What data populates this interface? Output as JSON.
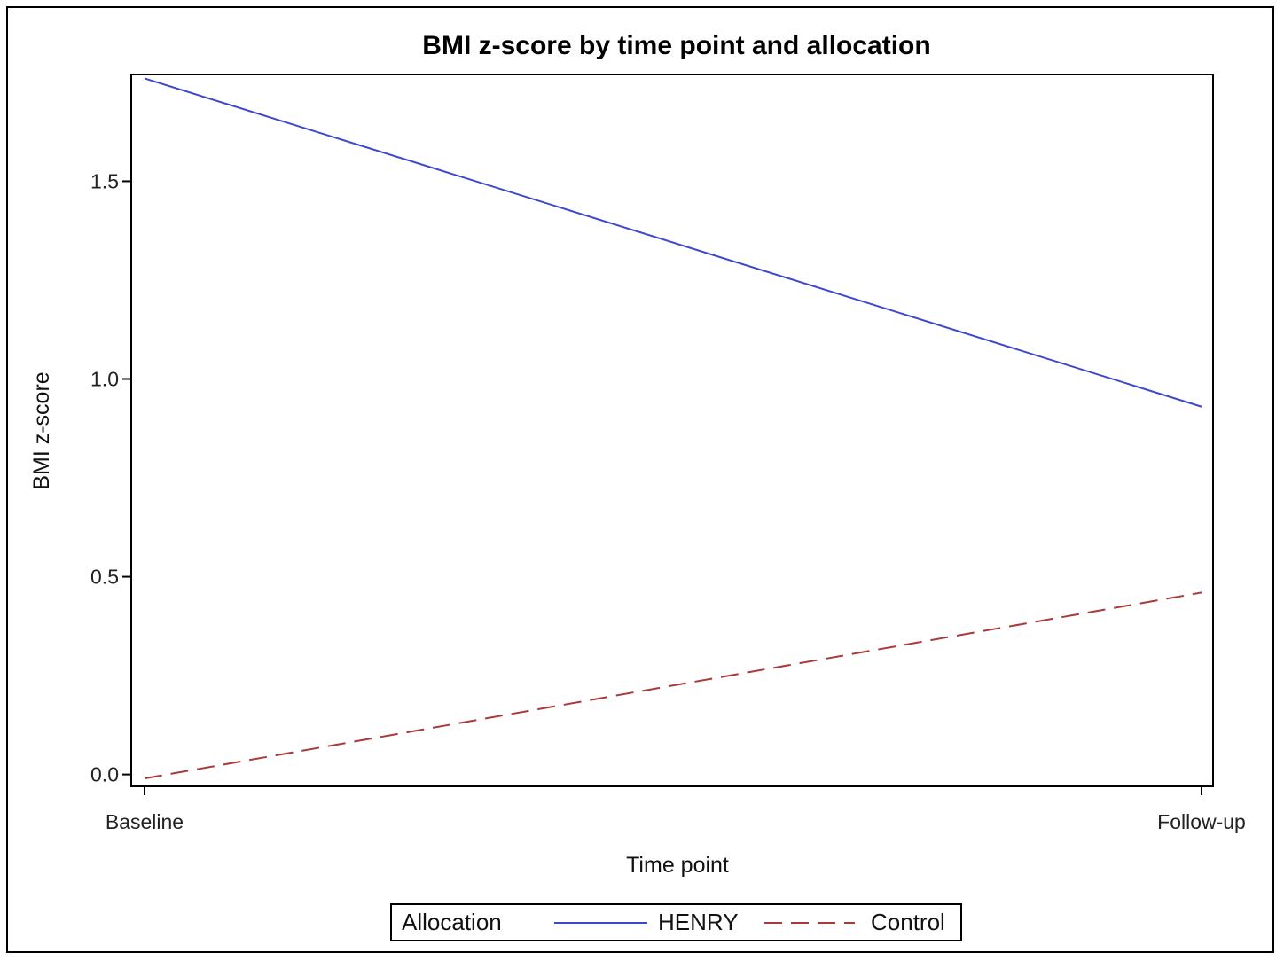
{
  "chart_data": {
    "type": "line",
    "title": "BMI z-score by time point and allocation",
    "xlabel": "Time point",
    "ylabel": "BMI z-score",
    "categories": [
      "Baseline",
      "Follow-up"
    ],
    "ylim": [
      -0.03,
      1.77
    ],
    "yticks": [
      "0.0",
      "0.5",
      "1.0",
      "1.5"
    ],
    "grid": false,
    "legend": {
      "title": "Allocation",
      "placement": "bottom-center"
    },
    "series": [
      {
        "name": "HENRY",
        "values": [
          1.76,
          0.93
        ],
        "color": "#3f48cc",
        "line_style": "solid"
      },
      {
        "name": "Control",
        "values": [
          -0.01,
          0.46
        ],
        "color": "#a83a3a",
        "line_style": "dashed"
      }
    ]
  }
}
